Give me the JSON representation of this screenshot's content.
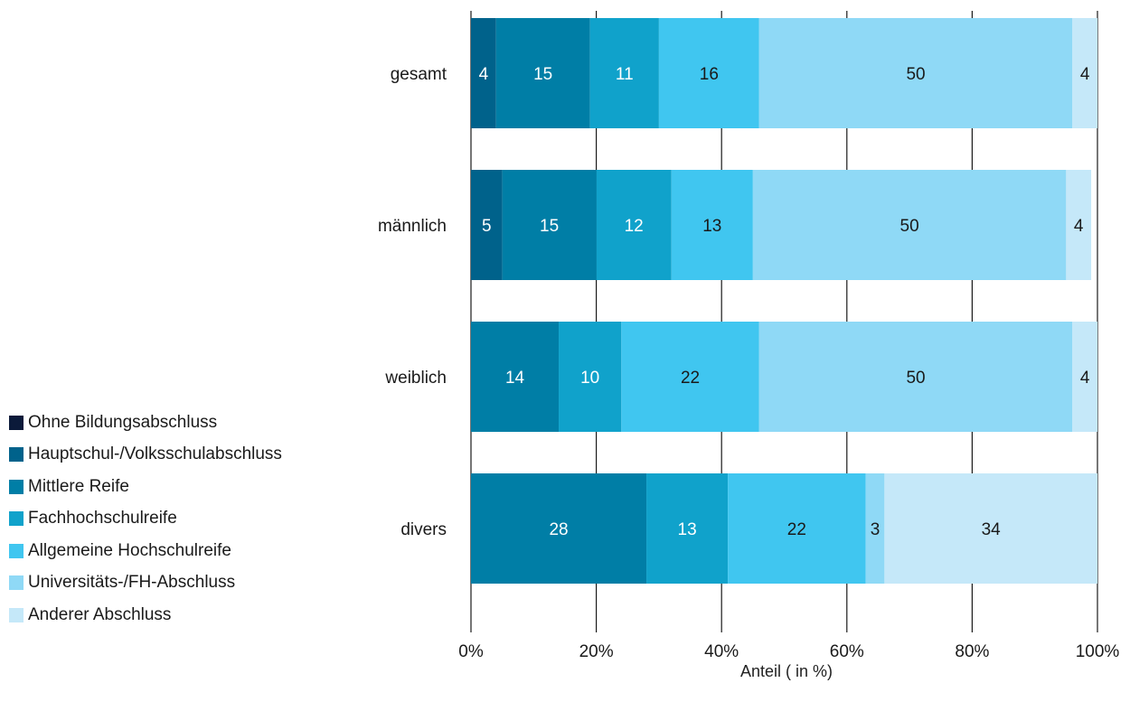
{
  "chart_data": {
    "type": "bar",
    "orientation": "horizontal",
    "stacked": true,
    "categories": [
      "gesamt",
      "männlich",
      "weiblich",
      "divers"
    ],
    "series": [
      {
        "name": "Ohne Bildungsabschluss",
        "color": "#0b1a3a",
        "values": [
          0,
          0,
          0,
          0
        ]
      },
      {
        "name": "Hauptschul-/Volksschulabschluss",
        "color": "#00628b",
        "values": [
          4,
          5,
          0,
          0
        ]
      },
      {
        "name": "Mittlere Reife",
        "color": "#007ea6",
        "values": [
          15,
          15,
          14,
          28
        ]
      },
      {
        "name": "Fachhochschulreife",
        "color": "#10a2cb",
        "values": [
          11,
          12,
          10,
          13
        ]
      },
      {
        "name": "Allgemeine Hochschulreife",
        "color": "#40c6f0",
        "values": [
          16,
          13,
          22,
          22
        ]
      },
      {
        "name": "Universitäts-/FH-Abschluss",
        "color": "#8fd9f6",
        "values": [
          50,
          50,
          50,
          3
        ]
      },
      {
        "name": "Anderer Abschluss",
        "color": "#c5e8f9",
        "values": [
          4,
          4,
          4,
          34
        ]
      }
    ],
    "xlabel": "Anteil ( in %)",
    "ylabel": "",
    "xlim": [
      0,
      100
    ],
    "xticks": [
      "0%",
      "20%",
      "40%",
      "60%",
      "80%",
      "100%"
    ],
    "grid": true,
    "legend_position": "left"
  }
}
